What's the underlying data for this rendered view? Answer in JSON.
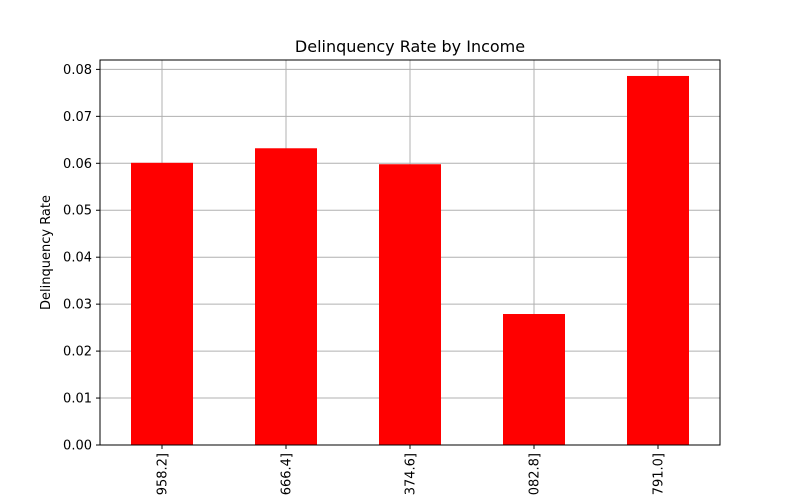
{
  "chart_data": {
    "type": "bar",
    "title": "Delinquency Rate by Income",
    "xlabel": "",
    "ylabel": "Delinquency Rate",
    "categories": [
      "958.2]",
      "666.4]",
      "374.6]",
      "082.8]",
      "791.0]"
    ],
    "values": [
      0.0601,
      0.0632,
      0.0598,
      0.0279,
      0.0786
    ],
    "ylim": [
      0,
      0.082
    ],
    "yticks": [
      "0.00",
      "0.01",
      "0.02",
      "0.03",
      "0.04",
      "0.05",
      "0.06",
      "0.07",
      "0.08"
    ],
    "bar_color": "#ff0000",
    "grid": true,
    "legend": "none"
  }
}
